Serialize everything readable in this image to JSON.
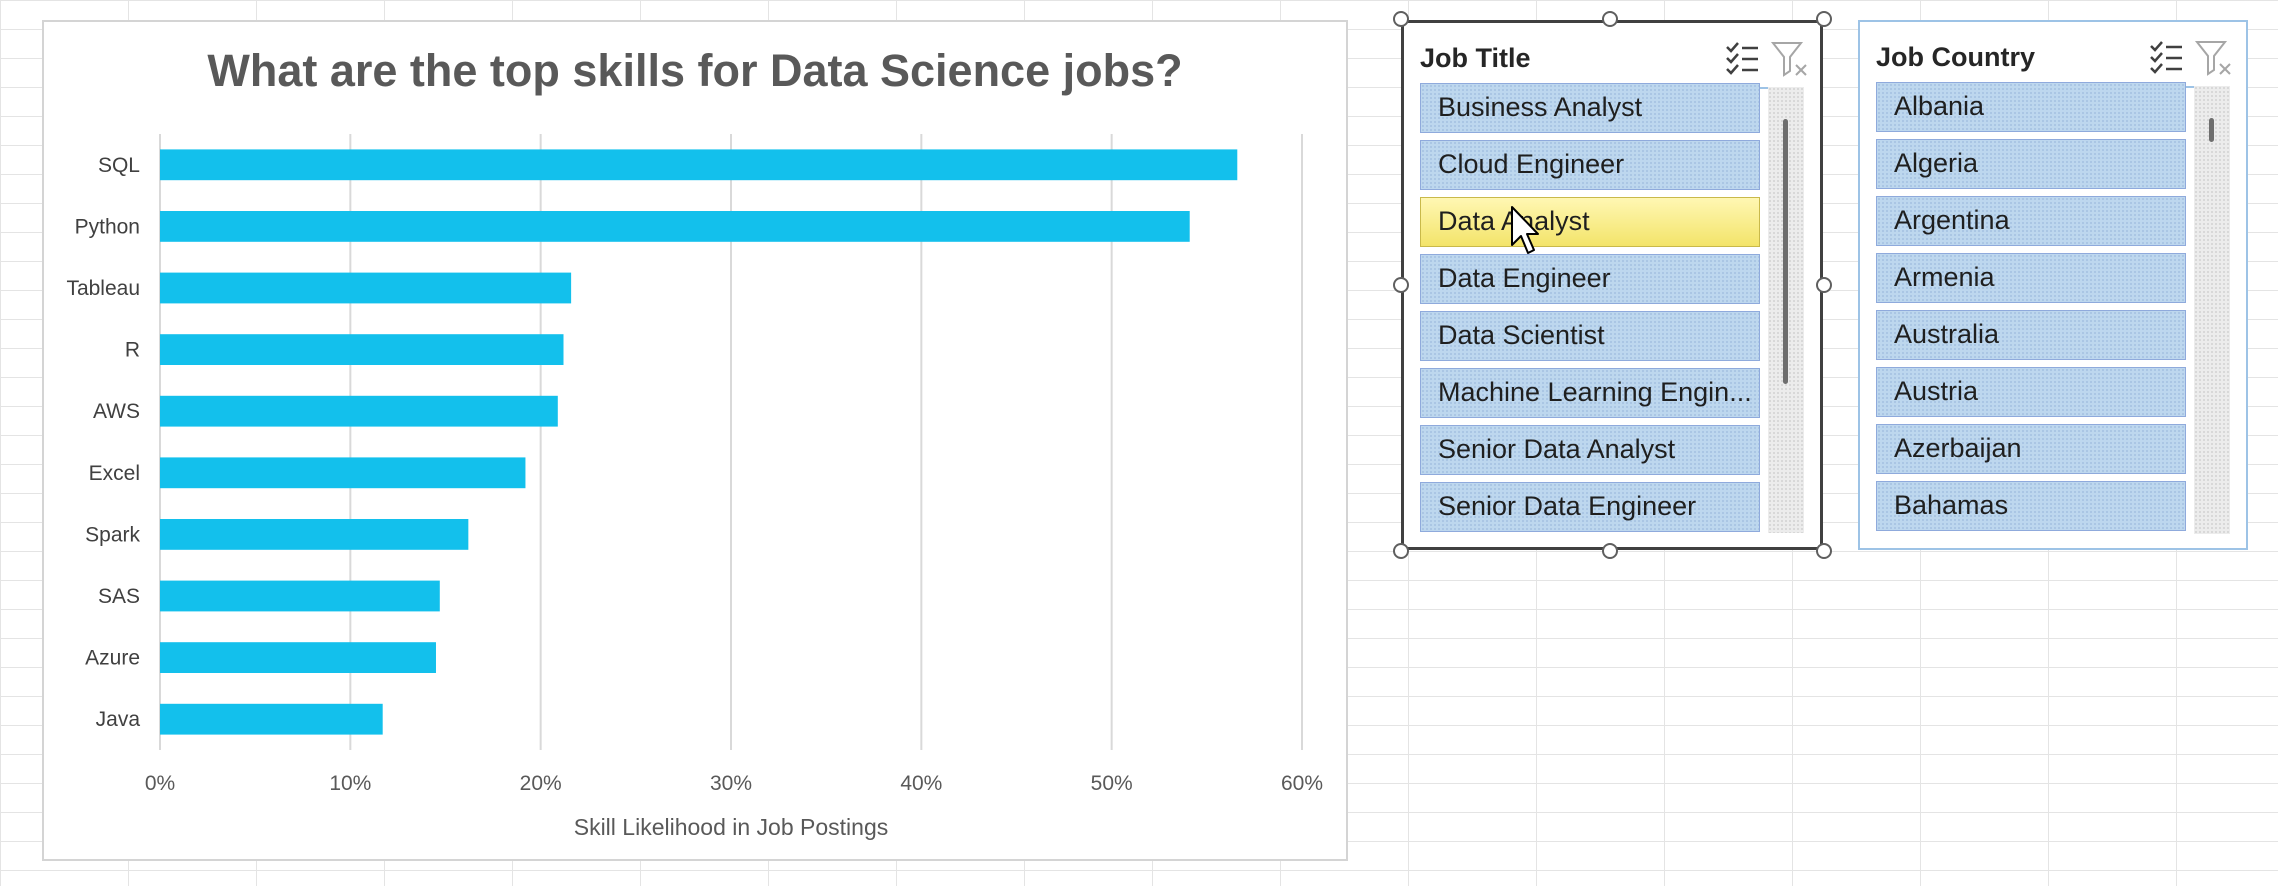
{
  "chart_data": {
    "type": "bar",
    "orientation": "horizontal",
    "title": "What are the top skills for Data Science jobs?",
    "xlabel": "Skill Likelihood in Job Postings",
    "ylabel": "",
    "categories": [
      "SQL",
      "Python",
      "Tableau",
      "R",
      "AWS",
      "Excel",
      "Spark",
      "SAS",
      "Azure",
      "Java"
    ],
    "values": [
      0.566,
      0.541,
      0.216,
      0.212,
      0.209,
      0.192,
      0.162,
      0.147,
      0.145,
      0.117
    ],
    "xlim": [
      0,
      0.6
    ],
    "xticks": [
      "0%",
      "10%",
      "20%",
      "30%",
      "40%",
      "50%",
      "60%"
    ],
    "grid": "vertical",
    "legend": "none",
    "bar_color": "#13c0ec"
  },
  "slicers": {
    "job_title": {
      "title": "Job Title",
      "items": [
        "Business Analyst",
        "Cloud Engineer",
        "Data Analyst",
        "Data Engineer",
        "Data Scientist",
        "Machine Learning Engin...",
        "Senior Data Analyst",
        "Senior Data Engineer"
      ],
      "hovered_item": "Data Analyst"
    },
    "job_country": {
      "title": "Job Country",
      "items": [
        "Albania",
        "Algeria",
        "Argentina",
        "Armenia",
        "Australia",
        "Austria",
        "Azerbaijan",
        "Bahamas"
      ]
    }
  },
  "icons": {
    "multi_select": "multi-select-icon",
    "clear_filter": "clear-filter-icon",
    "cursor": "mouse-pointer-icon"
  }
}
